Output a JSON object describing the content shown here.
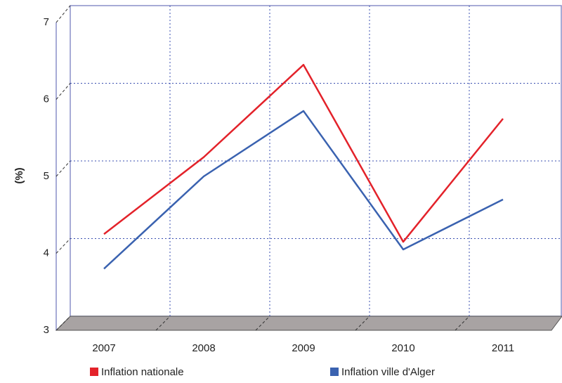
{
  "chart_data": {
    "type": "line",
    "y_label": "(%)",
    "categories": [
      "2007",
      "2008",
      "2009",
      "2010",
      "2011"
    ],
    "series": [
      {
        "name": "Inflation nationale",
        "color": "#e3222a",
        "values": [
          4.25,
          5.25,
          6.45,
          4.15,
          5.75
        ]
      },
      {
        "name": "Inflation ville d'Alger",
        "color": "#3a62b0",
        "values": [
          3.8,
          5.0,
          5.85,
          4.05,
          4.7
        ]
      }
    ],
    "ylim": [
      3,
      7
    ],
    "yticks": [
      3,
      4,
      5,
      6,
      7
    ],
    "grid": true
  }
}
